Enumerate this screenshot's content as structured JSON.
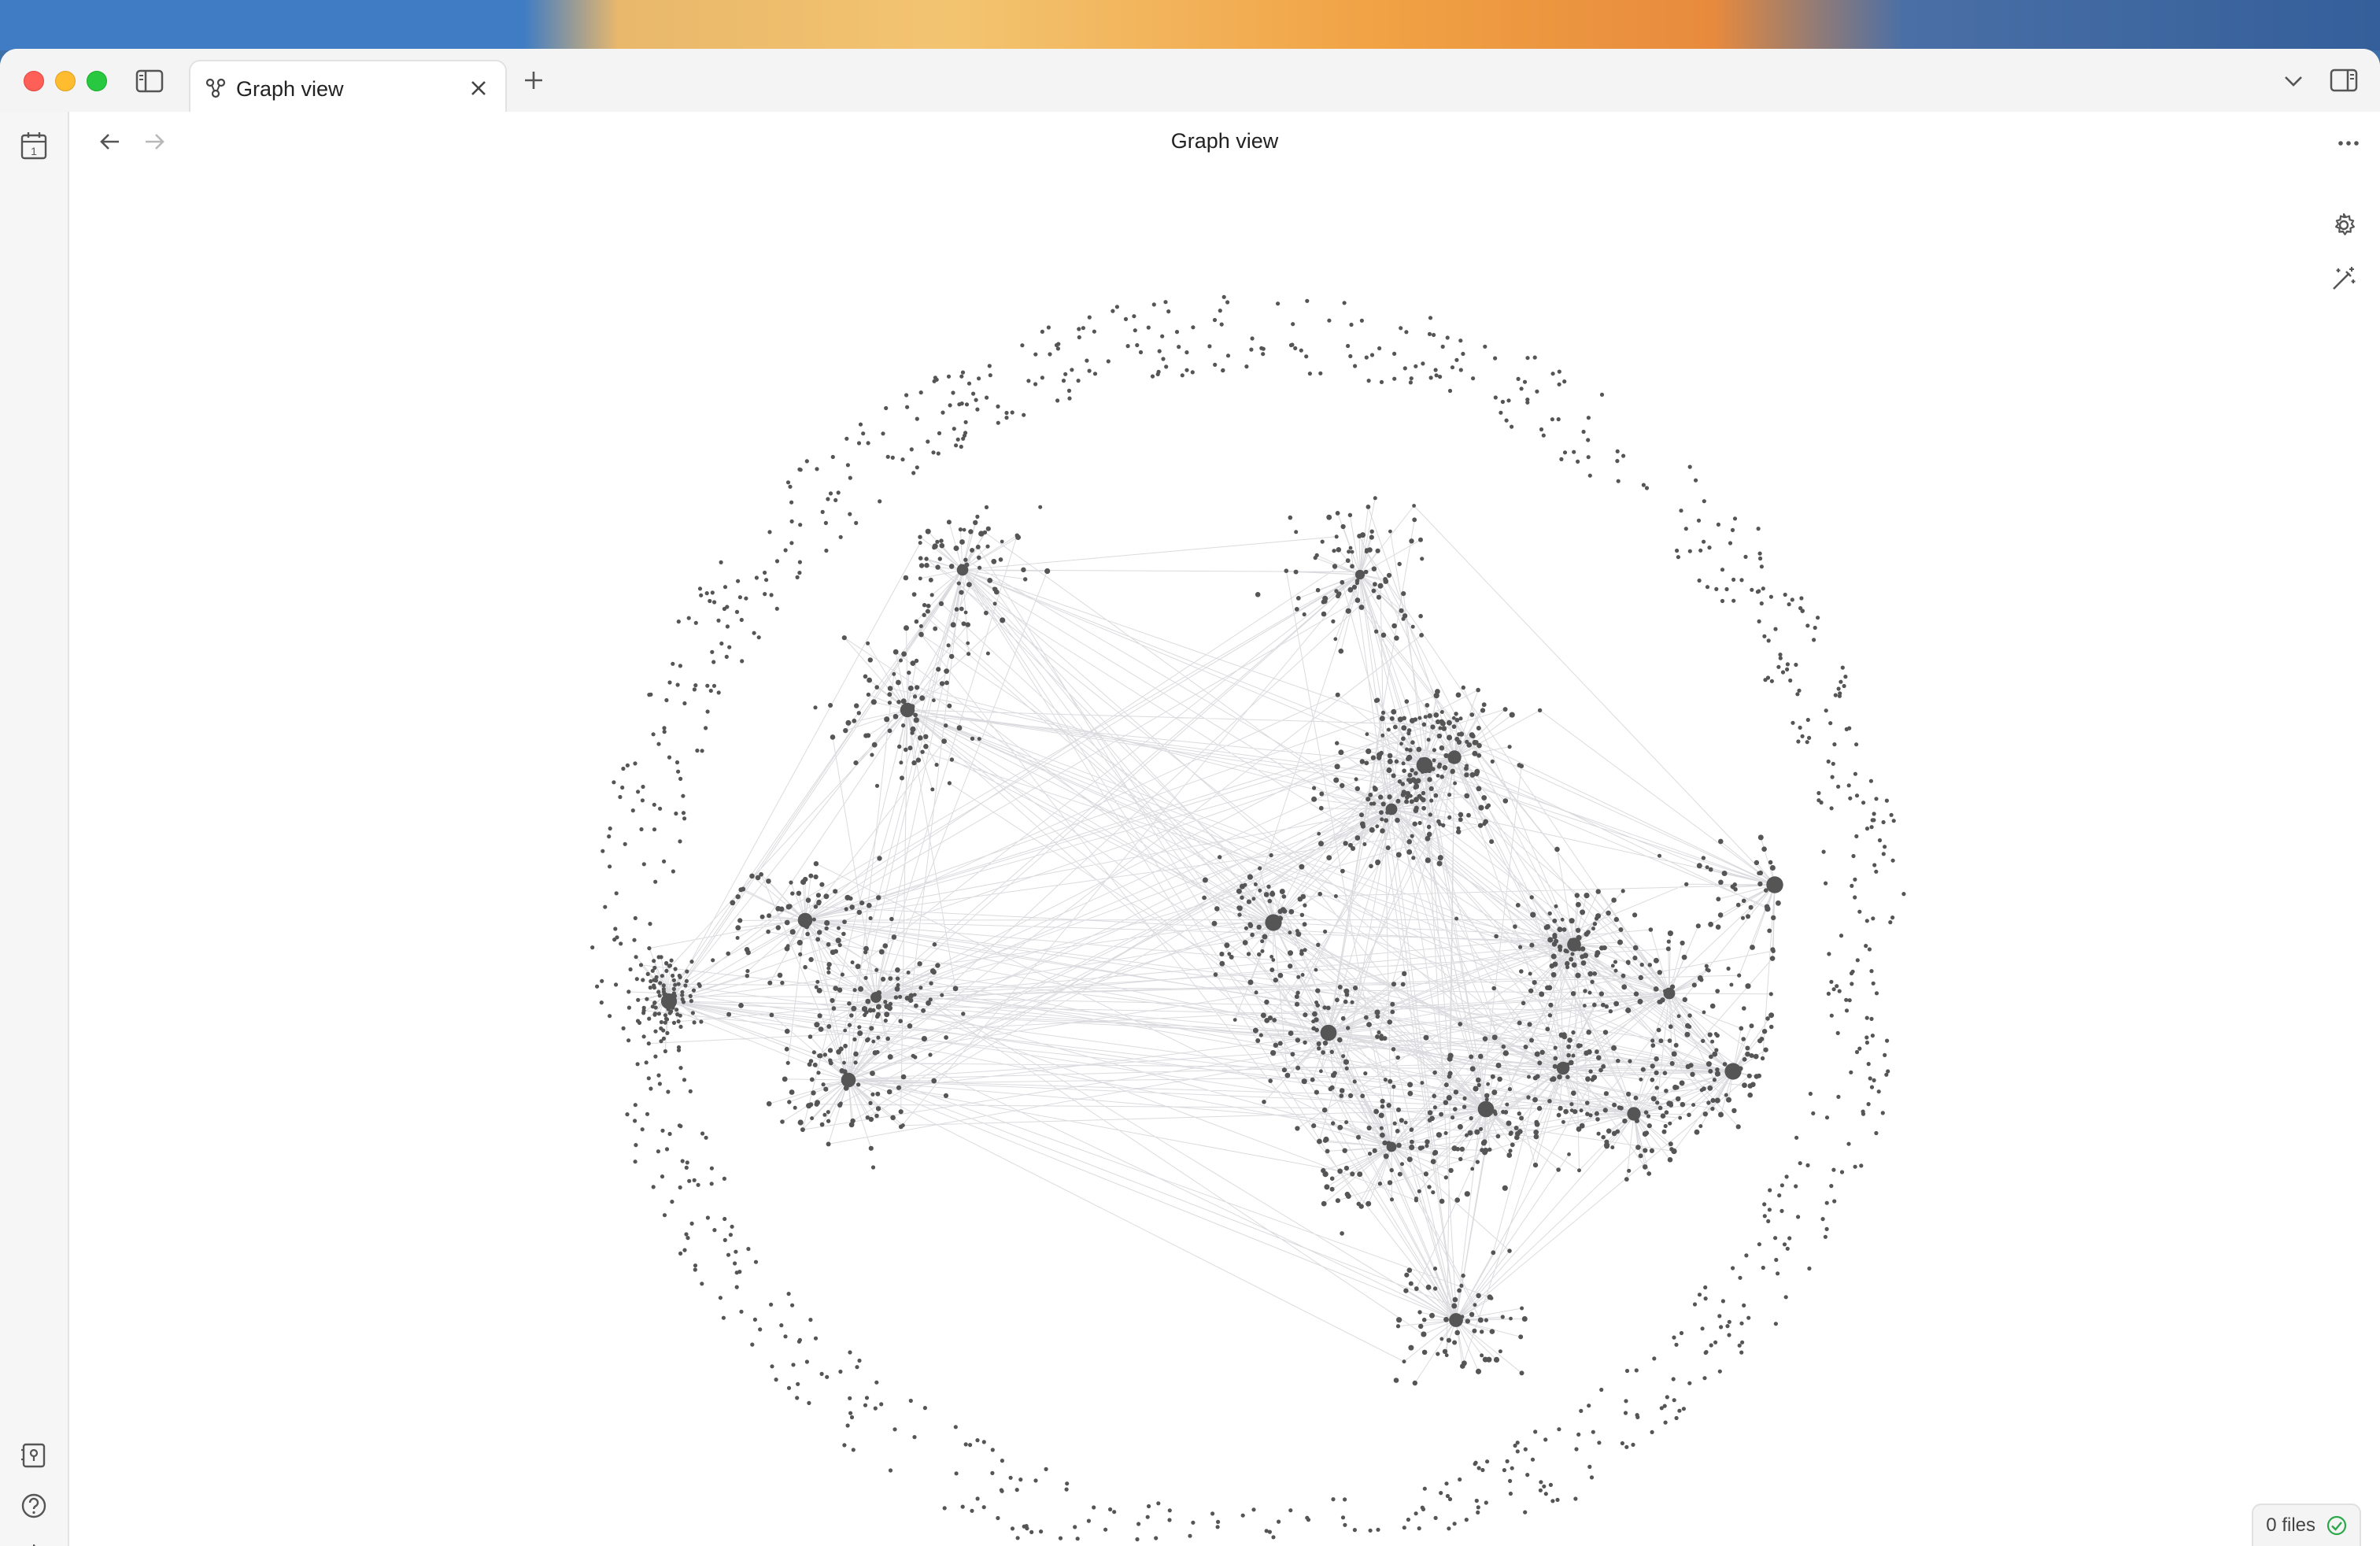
{
  "window": {
    "tab_title": "Graph view",
    "view_title": "Graph view"
  },
  "tabbar": {
    "icons": [
      "sidebar-toggle-icon",
      "graph-icon",
      "close-icon",
      "plus-icon",
      "chevron-down-icon",
      "right-sidebar-icon"
    ]
  },
  "sidebar": {
    "top_icons": [
      "calendar-icon"
    ],
    "bottom_icons": [
      "vault-icon",
      "help-icon",
      "gear-icon"
    ]
  },
  "nav": {
    "icons": [
      "arrow-left-icon",
      "arrow-right-icon",
      "more-horizontal-icon"
    ]
  },
  "graph_controls": {
    "icons": [
      "gear-icon",
      "magic-wand-icon"
    ]
  },
  "status_bar": {
    "files": "0 files"
  },
  "colors": {
    "node": "#555555",
    "edge": "#cfcfd4",
    "sync_ok": "#2aa84a"
  }
}
